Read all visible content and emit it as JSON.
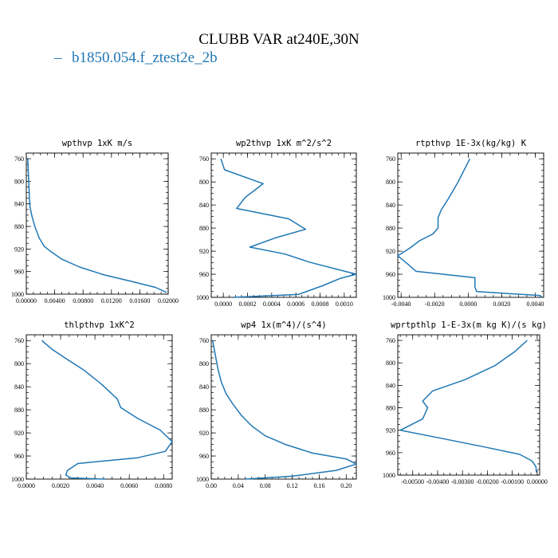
{
  "figure": {
    "title": "CLUBB VAR at240E,30N",
    "legend": {
      "symbol": "–",
      "label": "b1850.054.f_ztest2e_2b"
    },
    "line_color": "#1f77b4"
  },
  "chart_data": [
    {
      "type": "line",
      "title": "wpthvp  1xK m/s",
      "xlabel": "",
      "ylabel": "",
      "xlim": [
        0.0,
        0.02
      ],
      "ylim": [
        1000,
        750
      ],
      "y_inverted": true,
      "xticks": [
        "0.00000",
        "0.00400",
        "0.00800",
        "0.01200",
        "0.01600",
        "0.02000"
      ],
      "xtick_values": [
        0.0,
        0.004,
        0.008,
        0.012,
        0.016,
        0.02
      ],
      "yticks": [
        "760",
        "800",
        "840",
        "880",
        "920",
        "960",
        "1000"
      ],
      "ytick_values": [
        760,
        800,
        840,
        880,
        920,
        960,
        1000
      ],
      "series": [
        {
          "x": [
            0.0002,
            0.0003,
            0.0004,
            0.0005,
            0.0008,
            0.0012,
            0.0018,
            0.0025,
            0.0035,
            0.005,
            0.0075,
            0.011,
            0.015,
            0.0182,
            0.0198
          ],
          "y": [
            760,
            790,
            820,
            845,
            862,
            880,
            900,
            915,
            925,
            938,
            952,
            966,
            978,
            988,
            997
          ]
        }
      ]
    },
    {
      "type": "line",
      "title": "wp2thvp  1xK m^2/s^2",
      "xlabel": "",
      "ylabel": "",
      "xlim": [
        -0.0001,
        0.0011
      ],
      "ylim": [
        1000,
        750
      ],
      "y_inverted": true,
      "xticks": [
        "0.0000",
        "0.0002",
        "0.0004",
        "0.0006",
        "0.0008",
        "0.0010"
      ],
      "xtick_values": [
        0.0,
        0.0002,
        0.0004,
        0.0006,
        0.0008,
        0.001
      ],
      "yticks": [
        "760",
        "800",
        "840",
        "880",
        "920",
        "960",
        "1000"
      ],
      "ytick_values": [
        760,
        800,
        840,
        880,
        920,
        960,
        1000
      ],
      "series": [
        {
          "x": [
            -2e-05,
            1e-05,
            0.00033,
            0.00018,
            0.00011,
            0.00054,
            0.00068,
            0.00043,
            0.00022,
            0.00051,
            0.00071,
            0.0011,
            0.00097,
            0.00082,
            0.00062,
            8e-05
          ],
          "y": [
            760,
            779,
            803,
            827,
            846,
            864,
            882,
            897,
            913,
            925,
            939,
            960,
            967,
            980,
            995,
            1000
          ]
        }
      ]
    },
    {
      "type": "line",
      "title": "rtpthvp  1E-3x(kg/kg) K",
      "xlabel": "",
      "ylabel": "",
      "xlim": [
        -0.0042,
        0.0045
      ],
      "ylim": [
        1000,
        750
      ],
      "y_inverted": true,
      "xticks": [
        "-0.0040",
        "-0.0020",
        "0.0000",
        "0.0020",
        "0.0040"
      ],
      "xtick_values": [
        -0.004,
        -0.002,
        0.0,
        0.002,
        0.004
      ],
      "yticks": [
        "760",
        "800",
        "840",
        "880",
        "920",
        "960",
        "1000"
      ],
      "ytick_values": [
        760,
        800,
        840,
        880,
        920,
        960,
        1000
      ],
      "series": [
        {
          "x": [
            0.0001,
            -0.0006,
            -0.0012,
            -0.0016,
            -0.0018,
            -0.0018,
            -0.0021,
            -0.0029,
            -0.0035,
            -0.0042,
            -0.0037,
            -0.0031,
            0.0004,
            0.0004,
            0.0005,
            0.0043,
            0.0044
          ],
          "y": [
            760,
            800,
            830,
            848,
            862,
            880,
            890,
            902,
            915,
            928,
            940,
            955,
            966,
            982,
            990,
            997,
            1000
          ]
        }
      ]
    },
    {
      "type": "line",
      "title": "thlpthvp  1xK^2",
      "xlabel": "",
      "ylabel": "",
      "xlim": [
        0.0,
        0.0085
      ],
      "ylim": [
        1000,
        750
      ],
      "y_inverted": true,
      "xticks": [
        "0.0000",
        "0.0020",
        "0.0040",
        "0.0060",
        "0.0080"
      ],
      "xtick_values": [
        0.0,
        0.002,
        0.004,
        0.006,
        0.008
      ],
      "yticks": [
        "760",
        "800",
        "840",
        "880",
        "920",
        "960",
        "1000"
      ],
      "ytick_values": [
        760,
        800,
        840,
        880,
        920,
        960,
        1000
      ],
      "series": [
        {
          "x": [
            0.0009,
            0.0015,
            0.0024,
            0.0034,
            0.0044,
            0.0053,
            0.0055,
            0.0065,
            0.0078,
            0.0085,
            0.0081,
            0.0065,
            0.003,
            0.0024,
            0.0023,
            0.0026,
            0.0046
          ],
          "y": [
            760,
            775,
            793,
            812,
            836,
            861,
            876,
            895,
            915,
            935,
            952,
            963,
            973,
            985,
            993,
            998,
            1000
          ]
        }
      ]
    },
    {
      "type": "line",
      "title": "wp4  1x(m^4)/(s^4)",
      "xlabel": "",
      "ylabel": "",
      "xlim": [
        0.0,
        0.215
      ],
      "ylim": [
        1000,
        750
      ],
      "y_inverted": true,
      "xticks": [
        "0.00",
        "0.04",
        "0.08",
        "0.12",
        "0.16",
        "0.20"
      ],
      "xtick_values": [
        0.0,
        0.04,
        0.08,
        0.12,
        0.16,
        0.2
      ],
      "yticks": [
        "760",
        "800",
        "840",
        "880",
        "920",
        "960",
        "1000"
      ],
      "ytick_values": [
        760,
        800,
        840,
        880,
        920,
        960,
        1000
      ],
      "series": [
        {
          "x": [
            0.002,
            0.006,
            0.01,
            0.015,
            0.022,
            0.032,
            0.045,
            0.06,
            0.08,
            0.11,
            0.15,
            0.2,
            0.215,
            0.185,
            0.12,
            0.05
          ],
          "y": [
            760,
            785,
            810,
            832,
            852,
            870,
            890,
            908,
            925,
            940,
            955,
            965,
            974,
            985,
            995,
            1000
          ]
        }
      ]
    },
    {
      "type": "line",
      "title": "wprtpthlp  1-E-3x(m kg K)/(s kg)",
      "xlabel": "",
      "ylabel": "",
      "xlim": [
        -0.0056,
        0.0001
      ],
      "ylim": [
        1000,
        750
      ],
      "y_inverted": true,
      "xticks": [
        "-0.00500",
        "-0.00400",
        "-0.00300",
        "-0.00200",
        "-0.00100",
        "0.00000"
      ],
      "xtick_values": [
        -0.005,
        -0.004,
        -0.003,
        -0.002,
        -0.001,
        0.0
      ],
      "yticks": [
        "760",
        "800",
        "840",
        "880",
        "920",
        "960",
        "1000"
      ],
      "ytick_values": [
        760,
        800,
        840,
        880,
        920,
        960,
        1000
      ],
      "series": [
        {
          "x": [
            -0.0004,
            -0.0009,
            -0.0017,
            -0.0029,
            -0.0042,
            -0.0046,
            -0.0044,
            -0.0046,
            -0.0055,
            -0.0038,
            -0.0021,
            -0.0007,
            -0.0002,
            -5e-05,
            -3e-05
          ],
          "y": [
            760,
            780,
            805,
            830,
            850,
            868,
            880,
            900,
            920,
            935,
            950,
            963,
            975,
            985,
            995
          ]
        }
      ]
    }
  ]
}
